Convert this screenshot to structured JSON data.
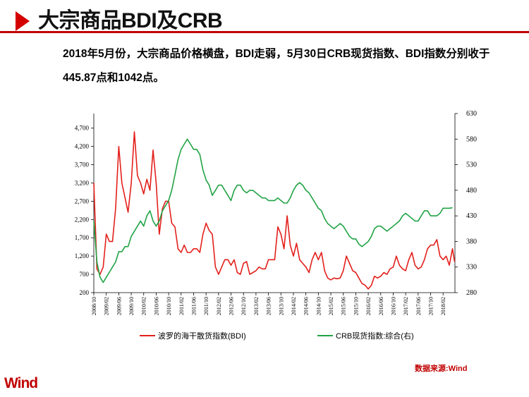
{
  "header": {
    "title": "大宗商品BDI及CRB"
  },
  "summary": {
    "text": "2018年5月份，大宗商品价格横盘，BDI走弱，5月30日CRB现货指数、BDI指数分别收于445.87点和1042点。"
  },
  "legend": {
    "bdi": "波罗的海干散货指数(BDI)",
    "crb": "CRB现货指数:综合(右)"
  },
  "footer": {
    "source": "数据来源:Wind",
    "logo": "Wind"
  },
  "colors": {
    "accent": "#c00000",
    "bdi": "#e3201b",
    "crb": "#21a345"
  },
  "chart_data": {
    "type": "line",
    "x_ticks": [
      "2008/10",
      "2009/02",
      "2009/06",
      "2009/10",
      "2010/02",
      "2010/06",
      "2010/10",
      "2011/02",
      "2011/06",
      "2011/10",
      "2012/02",
      "2012/06",
      "2012/10",
      "2013/02",
      "2013/06",
      "2013/10",
      "2014/02",
      "2014/06",
      "2014/10",
      "2015/02",
      "2015/06",
      "2015/10",
      "2016/02",
      "2016/06",
      "2016/10",
      "2017/02",
      "2017/06",
      "2017/10",
      "2018/02"
    ],
    "y_left": {
      "ticks": [
        200,
        700,
        1200,
        1700,
        2200,
        2700,
        3200,
        3700,
        4200,
        4700
      ],
      "ylim": [
        200,
        5100
      ]
    },
    "y_right": {
      "ticks": [
        280,
        330,
        380,
        430,
        480,
        530,
        580,
        630
      ],
      "ylim": [
        280,
        630
      ]
    },
    "series": [
      {
        "name": "波罗的海干散货指数(BDI)",
        "axis": "left",
        "color": "#e3201b",
        "points": [
          [
            "2008/10",
            3200
          ],
          [
            "2008/11",
            850
          ],
          [
            "2008/12",
            700
          ],
          [
            "2009/01",
            900
          ],
          [
            "2009/02",
            1800
          ],
          [
            "2009/03",
            1600
          ],
          [
            "2009/04",
            1600
          ],
          [
            "2009/05",
            2500
          ],
          [
            "2009/06",
            4200
          ],
          [
            "2009/07",
            3200
          ],
          [
            "2009/08",
            2800
          ],
          [
            "2009/09",
            2400
          ],
          [
            "2009/10",
            3200
          ],
          [
            "2009/11",
            4600
          ],
          [
            "2009/12",
            3400
          ],
          [
            "2010/01",
            3200
          ],
          [
            "2010/02",
            2900
          ],
          [
            "2010/03",
            3300
          ],
          [
            "2010/04",
            3000
          ],
          [
            "2010/05",
            4100
          ],
          [
            "2010/06",
            3200
          ],
          [
            "2010/07",
            1800
          ],
          [
            "2010/08",
            2500
          ],
          [
            "2010/09",
            2700
          ],
          [
            "2010/10",
            2700
          ],
          [
            "2010/11",
            2100
          ],
          [
            "2010/12",
            2000
          ],
          [
            "2011/01",
            1400
          ],
          [
            "2011/02",
            1300
          ],
          [
            "2011/03",
            1500
          ],
          [
            "2011/04",
            1300
          ],
          [
            "2011/05",
            1300
          ],
          [
            "2011/06",
            1400
          ],
          [
            "2011/07",
            1400
          ],
          [
            "2011/08",
            1300
          ],
          [
            "2011/09",
            1800
          ],
          [
            "2011/10",
            2100
          ],
          [
            "2011/11",
            1900
          ],
          [
            "2011/12",
            1800
          ],
          [
            "2012/01",
            900
          ],
          [
            "2012/02",
            700
          ],
          [
            "2012/03",
            900
          ],
          [
            "2012/04",
            1100
          ],
          [
            "2012/05",
            1100
          ],
          [
            "2012/06",
            950
          ],
          [
            "2012/07",
            1100
          ],
          [
            "2012/08",
            750
          ],
          [
            "2012/09",
            700
          ],
          [
            "2012/10",
            1000
          ],
          [
            "2012/11",
            1050
          ],
          [
            "2012/12",
            700
          ],
          [
            "2013/01",
            750
          ],
          [
            "2013/02",
            800
          ],
          [
            "2013/03",
            900
          ],
          [
            "2013/04",
            850
          ],
          [
            "2013/05",
            850
          ],
          [
            "2013/06",
            1100
          ],
          [
            "2013/07",
            1100
          ],
          [
            "2013/08",
            1100
          ],
          [
            "2013/09",
            2000
          ],
          [
            "2013/10",
            1800
          ],
          [
            "2013/11",
            1400
          ],
          [
            "2013/12",
            2300
          ],
          [
            "2014/01",
            1500
          ],
          [
            "2014/02",
            1200
          ],
          [
            "2014/03",
            1550
          ],
          [
            "2014/04",
            1100
          ],
          [
            "2014/05",
            1000
          ],
          [
            "2014/06",
            900
          ],
          [
            "2014/07",
            750
          ],
          [
            "2014/08",
            1100
          ],
          [
            "2014/09",
            1300
          ],
          [
            "2014/10",
            1100
          ],
          [
            "2014/11",
            1300
          ],
          [
            "2014/12",
            800
          ],
          [
            "2015/01",
            600
          ],
          [
            "2015/02",
            550
          ],
          [
            "2015/03",
            600
          ],
          [
            "2015/04",
            580
          ],
          [
            "2015/05",
            600
          ],
          [
            "2015/06",
            800
          ],
          [
            "2015/07",
            1200
          ],
          [
            "2015/08",
            1000
          ],
          [
            "2015/09",
            800
          ],
          [
            "2015/10",
            750
          ],
          [
            "2015/11",
            600
          ],
          [
            "2015/12",
            450
          ],
          [
            "2016/01",
            400
          ],
          [
            "2016/02",
            300
          ],
          [
            "2016/03",
            400
          ],
          [
            "2016/04",
            650
          ],
          [
            "2016/05",
            600
          ],
          [
            "2016/06",
            650
          ],
          [
            "2016/07",
            750
          ],
          [
            "2016/08",
            700
          ],
          [
            "2016/09",
            850
          ],
          [
            "2016/10",
            900
          ],
          [
            "2016/11",
            1200
          ],
          [
            "2016/12",
            950
          ],
          [
            "2017/01",
            850
          ],
          [
            "2017/02",
            800
          ],
          [
            "2017/03",
            1100
          ],
          [
            "2017/04",
            1300
          ],
          [
            "2017/05",
            950
          ],
          [
            "2017/06",
            850
          ],
          [
            "2017/07",
            900
          ],
          [
            "2017/08",
            1100
          ],
          [
            "2017/09",
            1400
          ],
          [
            "2017/10",
            1500
          ],
          [
            "2017/11",
            1500
          ],
          [
            "2017/12",
            1650
          ],
          [
            "2018/01",
            1200
          ],
          [
            "2018/02",
            1100
          ],
          [
            "2018/03",
            1200
          ],
          [
            "2018/04",
            950
          ],
          [
            "2018/05",
            1400
          ],
          [
            "2018/05",
            1042
          ]
        ]
      },
      {
        "name": "CRB现货指数:综合(右)",
        "axis": "right",
        "color": "#21a345",
        "points": [
          [
            "2008/10",
            420
          ],
          [
            "2008/11",
            340
          ],
          [
            "2008/12",
            310
          ],
          [
            "2009/01",
            300
          ],
          [
            "2009/02",
            310
          ],
          [
            "2009/03",
            320
          ],
          [
            "2009/04",
            330
          ],
          [
            "2009/05",
            340
          ],
          [
            "2009/06",
            360
          ],
          [
            "2009/07",
            360
          ],
          [
            "2009/08",
            370
          ],
          [
            "2009/09",
            370
          ],
          [
            "2009/10",
            390
          ],
          [
            "2009/11",
            400
          ],
          [
            "2009/12",
            410
          ],
          [
            "2010/01",
            420
          ],
          [
            "2010/02",
            410
          ],
          [
            "2010/03",
            430
          ],
          [
            "2010/04",
            440
          ],
          [
            "2010/05",
            420
          ],
          [
            "2010/06",
            410
          ],
          [
            "2010/07",
            420
          ],
          [
            "2010/08",
            440
          ],
          [
            "2010/09",
            450
          ],
          [
            "2010/10",
            460
          ],
          [
            "2010/11",
            480
          ],
          [
            "2010/12",
            510
          ],
          [
            "2011/01",
            540
          ],
          [
            "2011/02",
            560
          ],
          [
            "2011/03",
            570
          ],
          [
            "2011/04",
            580
          ],
          [
            "2011/05",
            570
          ],
          [
            "2011/06",
            560
          ],
          [
            "2011/07",
            560
          ],
          [
            "2011/08",
            550
          ],
          [
            "2011/09",
            520
          ],
          [
            "2011/10",
            500
          ],
          [
            "2011/11",
            490
          ],
          [
            "2011/12",
            470
          ],
          [
            "2012/01",
            480
          ],
          [
            "2012/02",
            490
          ],
          [
            "2012/03",
            490
          ],
          [
            "2012/04",
            480
          ],
          [
            "2012/05",
            470
          ],
          [
            "2012/06",
            460
          ],
          [
            "2012/07",
            480
          ],
          [
            "2012/08",
            490
          ],
          [
            "2012/09",
            490
          ],
          [
            "2012/10",
            480
          ],
          [
            "2012/11",
            475
          ],
          [
            "2012/12",
            480
          ],
          [
            "2013/01",
            480
          ],
          [
            "2013/02",
            475
          ],
          [
            "2013/03",
            470
          ],
          [
            "2013/04",
            465
          ],
          [
            "2013/05",
            465
          ],
          [
            "2013/06",
            460
          ],
          [
            "2013/07",
            460
          ],
          [
            "2013/08",
            460
          ],
          [
            "2013/09",
            465
          ],
          [
            "2013/10",
            460
          ],
          [
            "2013/11",
            455
          ],
          [
            "2013/12",
            455
          ],
          [
            "2014/01",
            465
          ],
          [
            "2014/02",
            480
          ],
          [
            "2014/03",
            490
          ],
          [
            "2014/04",
            495
          ],
          [
            "2014/05",
            490
          ],
          [
            "2014/06",
            480
          ],
          [
            "2014/07",
            475
          ],
          [
            "2014/08",
            465
          ],
          [
            "2014/09",
            455
          ],
          [
            "2014/10",
            445
          ],
          [
            "2014/11",
            440
          ],
          [
            "2014/12",
            425
          ],
          [
            "2015/01",
            415
          ],
          [
            "2015/02",
            410
          ],
          [
            "2015/03",
            405
          ],
          [
            "2015/04",
            410
          ],
          [
            "2015/05",
            415
          ],
          [
            "2015/06",
            410
          ],
          [
            "2015/07",
            400
          ],
          [
            "2015/08",
            390
          ],
          [
            "2015/09",
            385
          ],
          [
            "2015/10",
            385
          ],
          [
            "2015/11",
            375
          ],
          [
            "2015/12",
            370
          ],
          [
            "2016/01",
            375
          ],
          [
            "2016/02",
            380
          ],
          [
            "2016/03",
            390
          ],
          [
            "2016/04",
            405
          ],
          [
            "2016/05",
            410
          ],
          [
            "2016/06",
            410
          ],
          [
            "2016/07",
            405
          ],
          [
            "2016/08",
            400
          ],
          [
            "2016/09",
            405
          ],
          [
            "2016/10",
            410
          ],
          [
            "2016/11",
            415
          ],
          [
            "2016/12",
            420
          ],
          [
            "2017/01",
            430
          ],
          [
            "2017/02",
            435
          ],
          [
            "2017/03",
            430
          ],
          [
            "2017/04",
            425
          ],
          [
            "2017/05",
            420
          ],
          [
            "2017/06",
            420
          ],
          [
            "2017/07",
            430
          ],
          [
            "2017/08",
            440
          ],
          [
            "2017/09",
            440
          ],
          [
            "2017/10",
            430
          ],
          [
            "2017/11",
            430
          ],
          [
            "2017/12",
            430
          ],
          [
            "2018/01",
            435
          ],
          [
            "2018/02",
            445
          ],
          [
            "2018/03",
            445
          ],
          [
            "2018/04",
            445
          ],
          [
            "2018/05",
            445.87
          ]
        ]
      }
    ]
  }
}
